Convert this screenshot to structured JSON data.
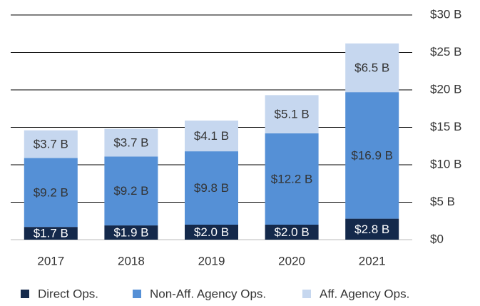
{
  "chart_data": {
    "type": "stacked_bar",
    "categories": [
      "2017",
      "2018",
      "2019",
      "2020",
      "2021"
    ],
    "series": [
      {
        "name": "Direct Ops.",
        "color": "#14294b",
        "values": [
          1.7,
          1.9,
          2.0,
          2.0,
          2.8
        ],
        "value_labels": [
          "$1.7 B",
          "$1.9 B",
          "$2.0 B",
          "$2.0 B",
          "$2.8 B"
        ]
      },
      {
        "name": "Non-Aff. Agency Ops.",
        "color": "#5590d6",
        "values": [
          9.2,
          9.2,
          9.8,
          12.2,
          16.9
        ],
        "value_labels": [
          "$9.2 B",
          "$9.2 B",
          "$9.8 B",
          "$12.2 B",
          "$16.9 B"
        ]
      },
      {
        "name": "Aff. Agency Ops.",
        "color": "#c6d7ef",
        "values": [
          3.7,
          3.7,
          4.1,
          5.1,
          6.5
        ],
        "value_labels": [
          "$3.7 B",
          "$3.7 B",
          "$4.1 B",
          "$5.1 B",
          "$6.5 B"
        ]
      }
    ],
    "ylim": [
      0,
      30
    ],
    "yticks": [
      {
        "value": 0,
        "label": "$0"
      },
      {
        "value": 5,
        "label": "$5 B"
      },
      {
        "value": 10,
        "label": "$10 B"
      },
      {
        "value": 15,
        "label": "$15 B"
      },
      {
        "value": 20,
        "label": "$20 B"
      },
      {
        "value": 25,
        "label": "$25 B"
      },
      {
        "value": 30,
        "label": "$30 B"
      }
    ],
    "grid": true,
    "legend": "bottom"
  }
}
